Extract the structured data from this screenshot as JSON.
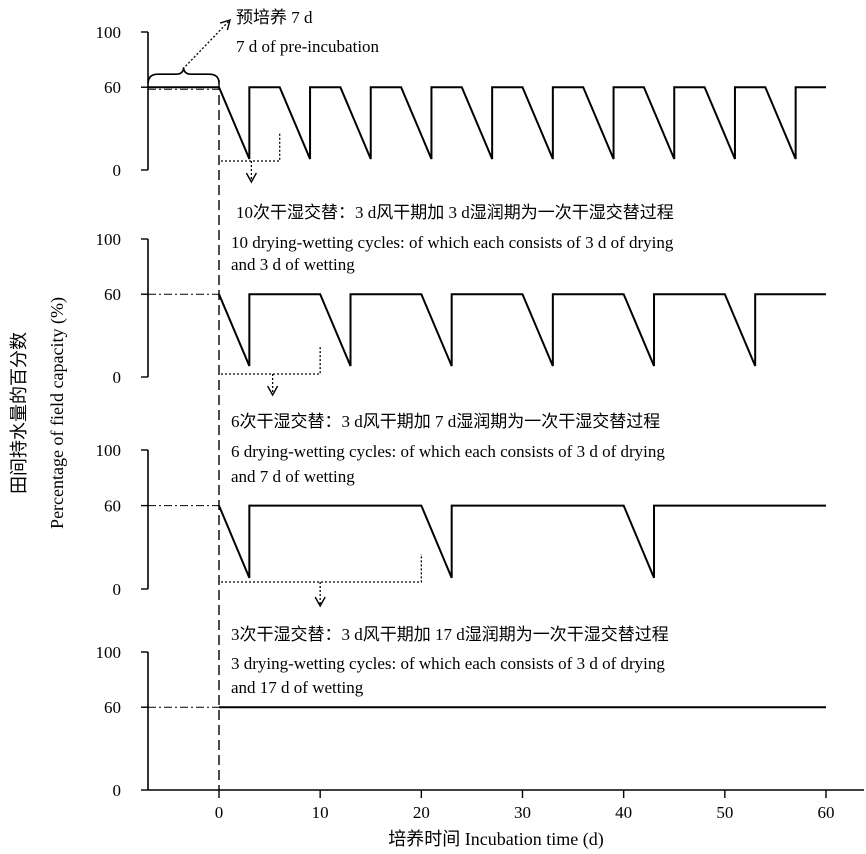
{
  "chart_data": {
    "type": "line",
    "xlabel": "培养时间 Incubation time (d)",
    "ylabel_cn": "田间持水量的百分数",
    "ylabel_en": "Percentage of field capacity (%)",
    "x_ticks": [
      0,
      10,
      20,
      30,
      40,
      50,
      60
    ],
    "y_ticks": [
      0,
      60,
      100
    ],
    "xlim": [
      -7,
      60
    ],
    "ylim": [
      0,
      100
    ],
    "baseline": 60,
    "preincubation_label_cn": "预培养 7 d",
    "preincubation_label_en": "7 d of pre-incubation",
    "panels": [
      {
        "cycles": 10,
        "dry_days": 3,
        "wet_days": 3,
        "dip_to": 8,
        "series": {
          "x": [
            -7,
            0,
            3,
            3,
            6,
            9,
            9,
            12,
            15,
            15,
            18,
            21,
            21,
            24,
            27,
            27,
            30,
            33,
            33,
            36,
            39,
            39,
            42,
            45,
            45,
            48,
            51,
            51,
            54,
            57,
            57,
            60
          ],
          "y": [
            60,
            60,
            8,
            60,
            60,
            8,
            60,
            60,
            8,
            60,
            60,
            8,
            60,
            60,
            8,
            60,
            60,
            8,
            60,
            60,
            8,
            60,
            60,
            8,
            60,
            60,
            8,
            60,
            60,
            8,
            60,
            60
          ]
        },
        "annotation_cn": "10次干湿交替：3 d风干期加 3 d湿润期为一次干湿交替过程",
        "annotation_en": [
          "10 drying-wetting cycles: of which each consists of 3 d of drying",
          "and 3 d of wetting"
        ]
      },
      {
        "cycles": 6,
        "dry_days": 3,
        "wet_days": 7,
        "dip_to": 8,
        "series": {
          "x": [
            0,
            3,
            3,
            10,
            13,
            13,
            20,
            23,
            23,
            30,
            33,
            33,
            40,
            43,
            43,
            50,
            53,
            53,
            60
          ],
          "y": [
            60,
            8,
            60,
            60,
            8,
            60,
            60,
            8,
            60,
            60,
            8,
            60,
            60,
            8,
            60,
            60,
            8,
            60,
            60
          ]
        },
        "annotation_cn": "6次干湿交替：3 d风干期加 7 d湿润期为一次干湿交替过程",
        "annotation_en": [
          "6 drying-wetting cycles: of which each consists of 3 d of drying",
          "and 7 d of wetting"
        ]
      },
      {
        "cycles": 3,
        "dry_days": 3,
        "wet_days": 17,
        "dip_to": 8,
        "series": {
          "x": [
            0,
            3,
            3,
            20,
            23,
            23,
            40,
            43,
            43,
            60
          ],
          "y": [
            60,
            8,
            60,
            60,
            8,
            60,
            60,
            8,
            60,
            60
          ]
        },
        "annotation_cn": "3次干湿交替：3 d风干期加 17 d湿润期为一次干湿交替过程",
        "annotation_en": [
          "3 drying-wetting cycles: of which each consists of 3 d of drying",
          " and 17 d of wetting"
        ]
      },
      {
        "cycles": 0,
        "series": {
          "x": [
            0,
            60
          ],
          "y": [
            60,
            60
          ]
        }
      }
    ]
  }
}
